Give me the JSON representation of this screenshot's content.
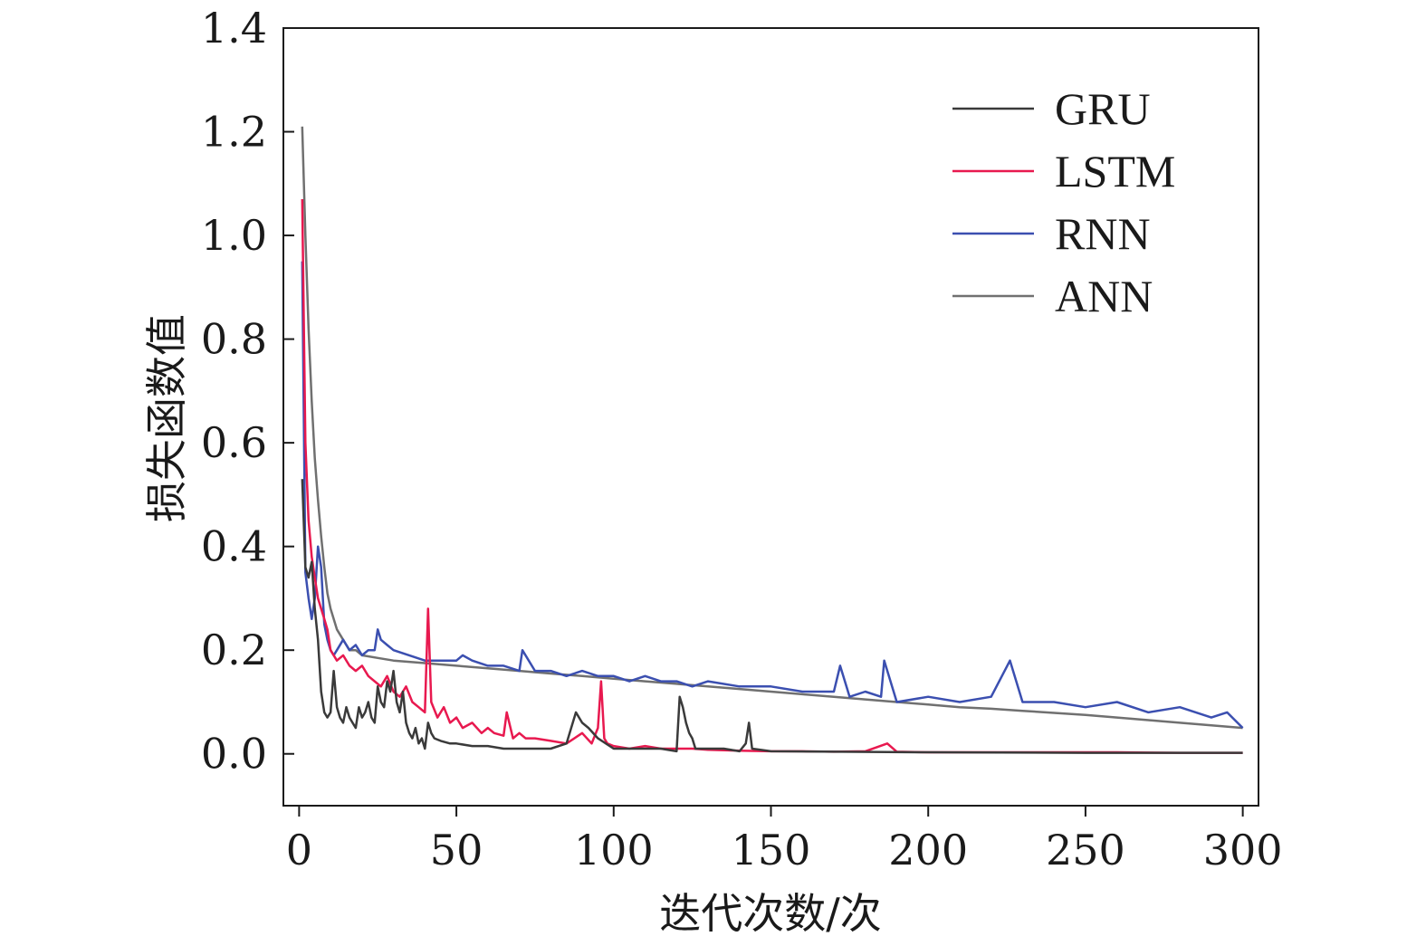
{
  "chart_data": {
    "type": "line",
    "title": "",
    "xlabel": "迭代次数/次",
    "ylabel": "损失函数值",
    "xlim": [
      -5,
      305
    ],
    "ylim": [
      -0.1,
      1.4
    ],
    "xticks": [
      0,
      50,
      100,
      150,
      200,
      250,
      300
    ],
    "yticks": [
      0.0,
      0.2,
      0.4,
      0.6,
      0.8,
      1.0,
      1.2,
      1.4
    ],
    "xtick_labels": [
      "0",
      "50",
      "100",
      "150",
      "200",
      "250",
      "300"
    ],
    "ytick_labels": [
      "0.0",
      "0.2",
      "0.4",
      "0.6",
      "0.8",
      "1.0",
      "1.2",
      "1.4"
    ],
    "grid": false,
    "legend_position": "top-right",
    "series": [
      {
        "name": "GRU",
        "color": "#3a3a3a",
        "x": [
          1,
          2,
          3,
          4,
          5,
          6,
          7,
          8,
          9,
          10,
          11,
          12,
          13,
          14,
          15,
          16,
          17,
          18,
          19,
          20,
          21,
          22,
          23,
          24,
          25,
          26,
          27,
          28,
          29,
          30,
          31,
          32,
          33,
          34,
          35,
          36,
          37,
          38,
          39,
          40,
          41,
          42,
          43,
          45,
          48,
          50,
          55,
          60,
          65,
          70,
          75,
          80,
          85,
          88,
          90,
          92,
          95,
          100,
          105,
          110,
          115,
          120,
          121,
          122,
          123,
          124,
          125,
          126,
          128,
          130,
          135,
          140,
          142,
          143,
          144,
          150,
          200,
          250,
          300
        ],
        "values": [
          0.53,
          0.36,
          0.34,
          0.37,
          0.28,
          0.22,
          0.12,
          0.08,
          0.07,
          0.08,
          0.16,
          0.09,
          0.07,
          0.06,
          0.09,
          0.07,
          0.06,
          0.05,
          0.09,
          0.07,
          0.08,
          0.1,
          0.07,
          0.06,
          0.13,
          0.1,
          0.09,
          0.14,
          0.12,
          0.16,
          0.1,
          0.08,
          0.12,
          0.06,
          0.04,
          0.03,
          0.05,
          0.02,
          0.03,
          0.01,
          0.06,
          0.04,
          0.03,
          0.025,
          0.02,
          0.02,
          0.015,
          0.015,
          0.01,
          0.01,
          0.01,
          0.01,
          0.02,
          0.08,
          0.06,
          0.05,
          0.03,
          0.01,
          0.01,
          0.01,
          0.01,
          0.005,
          0.11,
          0.09,
          0.06,
          0.04,
          0.03,
          0.01,
          0.01,
          0.01,
          0.01,
          0.005,
          0.02,
          0.06,
          0.01,
          0.005,
          0.003,
          0.002,
          0.002
        ]
      },
      {
        "name": "LSTM",
        "color": "#e8194f",
        "x": [
          1,
          2,
          3,
          4,
          5,
          6,
          7,
          8,
          9,
          10,
          12,
          14,
          16,
          18,
          20,
          22,
          24,
          26,
          28,
          30,
          32,
          34,
          36,
          38,
          40,
          41,
          42,
          44,
          46,
          48,
          50,
          52,
          55,
          58,
          60,
          62,
          65,
          66,
          68,
          70,
          72,
          75,
          80,
          85,
          90,
          93,
          95,
          96,
          97,
          98,
          100,
          105,
          110,
          115,
          120,
          125,
          130,
          140,
          150,
          160,
          170,
          180,
          187,
          190,
          200,
          220,
          240,
          260,
          280,
          300
        ],
        "values": [
          1.07,
          0.6,
          0.45,
          0.38,
          0.34,
          0.3,
          0.28,
          0.26,
          0.24,
          0.2,
          0.18,
          0.19,
          0.17,
          0.16,
          0.17,
          0.15,
          0.14,
          0.13,
          0.15,
          0.12,
          0.11,
          0.13,
          0.1,
          0.09,
          0.08,
          0.28,
          0.1,
          0.07,
          0.09,
          0.06,
          0.07,
          0.05,
          0.06,
          0.04,
          0.05,
          0.04,
          0.035,
          0.08,
          0.03,
          0.04,
          0.03,
          0.03,
          0.025,
          0.02,
          0.04,
          0.02,
          0.05,
          0.14,
          0.03,
          0.02,
          0.015,
          0.01,
          0.015,
          0.01,
          0.01,
          0.01,
          0.008,
          0.006,
          0.005,
          0.005,
          0.004,
          0.005,
          0.02,
          0.004,
          0.003,
          0.003,
          0.003,
          0.003,
          0.002,
          0.002
        ]
      },
      {
        "name": "RNN",
        "color": "#3b4fb0",
        "x": [
          1,
          2,
          3,
          4,
          5,
          6,
          7,
          8,
          9,
          10,
          11,
          12,
          14,
          16,
          18,
          20,
          22,
          24,
          25,
          26,
          28,
          30,
          35,
          40,
          45,
          50,
          52,
          55,
          60,
          65,
          70,
          71,
          75,
          80,
          85,
          90,
          95,
          100,
          105,
          110,
          115,
          120,
          125,
          130,
          140,
          150,
          160,
          170,
          172,
          175,
          180,
          185,
          186,
          190,
          200,
          210,
          220,
          226,
          230,
          240,
          250,
          260,
          270,
          280,
          290,
          295,
          300
        ],
        "values": [
          0.95,
          0.35,
          0.3,
          0.26,
          0.3,
          0.4,
          0.36,
          0.25,
          0.22,
          0.2,
          0.19,
          0.2,
          0.22,
          0.2,
          0.21,
          0.19,
          0.2,
          0.2,
          0.24,
          0.22,
          0.21,
          0.2,
          0.19,
          0.18,
          0.18,
          0.18,
          0.19,
          0.18,
          0.17,
          0.17,
          0.16,
          0.2,
          0.16,
          0.16,
          0.15,
          0.16,
          0.15,
          0.15,
          0.14,
          0.15,
          0.14,
          0.14,
          0.13,
          0.14,
          0.13,
          0.13,
          0.12,
          0.12,
          0.17,
          0.11,
          0.12,
          0.11,
          0.18,
          0.1,
          0.11,
          0.1,
          0.11,
          0.18,
          0.1,
          0.1,
          0.09,
          0.1,
          0.08,
          0.09,
          0.07,
          0.08,
          0.05
        ]
      },
      {
        "name": "ANN",
        "color": "#707070",
        "x": [
          1,
          2,
          3,
          4,
          5,
          6,
          7,
          8,
          9,
          10,
          12,
          14,
          16,
          18,
          20,
          25,
          30,
          40,
          50,
          60,
          70,
          80,
          90,
          100,
          110,
          120,
          130,
          140,
          150,
          160,
          170,
          180,
          190,
          200,
          210,
          220,
          230,
          240,
          250,
          260,
          270,
          280,
          290,
          300
        ],
        "values": [
          1.21,
          1.0,
          0.82,
          0.68,
          0.57,
          0.49,
          0.42,
          0.36,
          0.31,
          0.28,
          0.24,
          0.22,
          0.2,
          0.2,
          0.19,
          0.185,
          0.18,
          0.175,
          0.17,
          0.165,
          0.16,
          0.155,
          0.15,
          0.145,
          0.14,
          0.135,
          0.13,
          0.125,
          0.12,
          0.115,
          0.11,
          0.105,
          0.1,
          0.095,
          0.09,
          0.087,
          0.083,
          0.079,
          0.075,
          0.07,
          0.065,
          0.06,
          0.055,
          0.05
        ]
      }
    ]
  }
}
